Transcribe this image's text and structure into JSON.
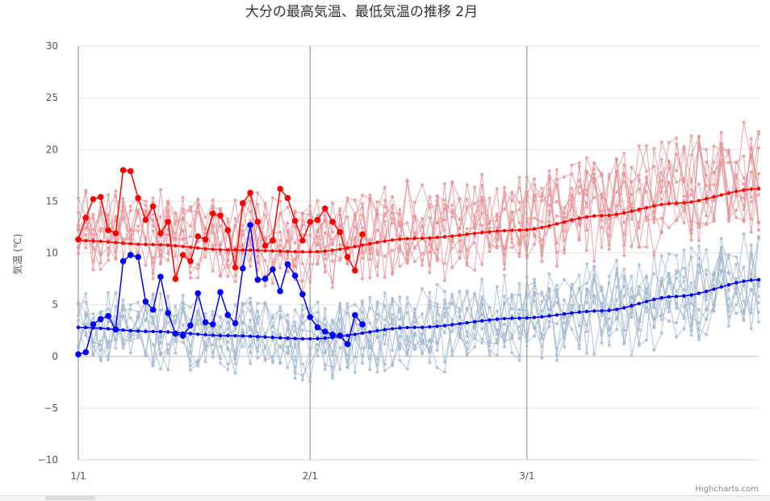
{
  "chart_data": {
    "type": "line",
    "title": "大分の最高気温、最低気温の推移 2月",
    "ylabel": "気温 (℃)",
    "xlabel": "",
    "ylim": [
      -10,
      30
    ],
    "yticks": [
      "30",
      "25",
      "20",
      "15",
      "10",
      "5",
      "0",
      "−5",
      "−10"
    ],
    "xticks": [
      {
        "label": "1/1",
        "day": 0
      },
      {
        "label": "2/1",
        "day": 31
      },
      {
        "label": "3/1",
        "day": 60
      }
    ],
    "x_range_days": [
      0,
      91
    ],
    "grid": true,
    "credit": "Highcharts.com",
    "colors": {
      "max_highlight": "#ff0000",
      "min_highlight": "#0000ff",
      "max_background": "#e8969b",
      "min_background": "#a7bbd1",
      "max_average": "#ff0000",
      "min_average": "#0000ff",
      "grid": "#e6e6e6",
      "month_line": "#808080",
      "zero_line": "#c0c0c0"
    },
    "highlight_max": {
      "start_day": 0,
      "values": [
        11.3,
        13.4,
        15.2,
        15.4,
        12.2,
        11.9,
        18.0,
        17.9,
        15.3,
        13.2,
        14.5,
        11.9,
        13.0,
        7.5,
        9.8,
        9.2,
        11.6,
        11.3,
        13.8,
        13.6,
        12.2,
        8.6,
        14.8,
        15.8,
        13.0,
        10.7,
        11.2,
        16.2,
        15.3,
        13.1,
        11.2,
        13.0,
        13.2,
        14.3,
        13.0,
        12.0,
        9.6,
        8.3,
        11.8
      ]
    },
    "highlight_min": {
      "start_day": 0,
      "values": [
        0.2,
        0.4,
        3.1,
        3.6,
        3.9,
        2.6,
        9.2,
        9.8,
        9.6,
        5.3,
        4.5,
        7.7,
        4.2,
        2.2,
        2.0,
        3.0,
        6.1,
        3.3,
        3.1,
        6.2,
        4.0,
        3.2,
        8.5,
        12.7,
        7.4,
        7.5,
        8.4,
        6.3,
        8.9,
        7.8,
        6.0,
        3.8,
        2.8,
        2.4,
        2.1,
        2.0,
        1.2,
        4.0,
        3.1
      ]
    },
    "average_max": {
      "knots_days": [
        0,
        10,
        20,
        31,
        45,
        59,
        70,
        80,
        91
      ],
      "knots_values": [
        11.2,
        10.8,
        10.3,
        10.1,
        11.4,
        12.2,
        13.6,
        14.8,
        16.2
      ]
    },
    "average_min": {
      "knots_days": [
        0,
        10,
        20,
        31,
        45,
        59,
        70,
        80,
        91
      ],
      "knots_values": [
        2.8,
        2.4,
        2.0,
        1.7,
        2.8,
        3.7,
        4.4,
        5.8,
        7.4
      ]
    },
    "background_years": 10,
    "background_spread": {
      "max_amplitude": 3.2,
      "min_amplitude": 2.9
    }
  }
}
